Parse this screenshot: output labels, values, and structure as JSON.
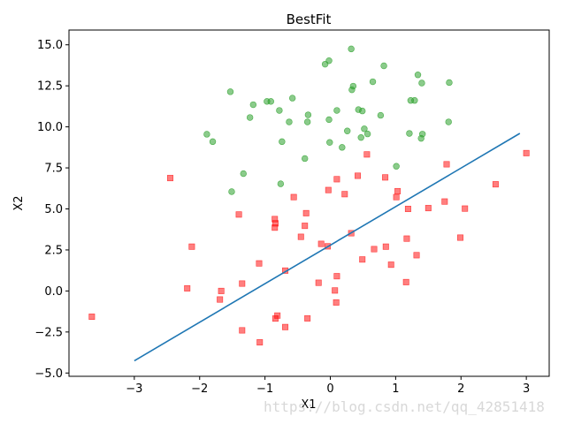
{
  "chart_data": {
    "type": "scatter",
    "title": "BestFit",
    "xlabel": "X1",
    "ylabel": "X2",
    "xlim": [
      -4.0,
      3.35
    ],
    "ylim": [
      -5.2,
      15.9
    ],
    "xticks": [
      -3,
      -2,
      -1,
      0,
      1,
      2,
      3
    ],
    "yticks": [
      -5.0,
      -2.5,
      0.0,
      2.5,
      5.0,
      7.5,
      10.0,
      12.5,
      15.0
    ],
    "xtick_labels": [
      "−3",
      "−2",
      "−1",
      "0",
      "1",
      "2",
      "3"
    ],
    "ytick_labels": [
      "−5.0",
      "−2.5",
      "0.0",
      "2.5",
      "5.0",
      "7.5",
      "10.0",
      "12.5",
      "15.0"
    ],
    "grid": false,
    "series": [
      {
        "kind": "scatter",
        "marker": "circle",
        "color": "#2ca02c",
        "points": [
          [
            0.32,
            14.75
          ],
          [
            -0.08,
            13.82
          ],
          [
            -0.02,
            14.03
          ],
          [
            0.82,
            13.72
          ],
          [
            1.34,
            13.17
          ],
          [
            1.4,
            12.67
          ],
          [
            1.82,
            12.7
          ],
          [
            0.65,
            12.75
          ],
          [
            0.35,
            12.48
          ],
          [
            0.33,
            12.26
          ],
          [
            -1.53,
            12.14
          ],
          [
            -0.58,
            11.75
          ],
          [
            -0.97,
            11.55
          ],
          [
            -0.91,
            11.55
          ],
          [
            -1.18,
            11.35
          ],
          [
            1.23,
            11.61
          ],
          [
            1.29,
            11.61
          ],
          [
            -0.78,
            11.0
          ],
          [
            0.1,
            11.0
          ],
          [
            0.43,
            11.05
          ],
          [
            0.49,
            10.97
          ],
          [
            -0.34,
            10.73
          ],
          [
            0.77,
            10.7
          ],
          [
            -1.23,
            10.57
          ],
          [
            -0.63,
            10.3
          ],
          [
            -0.35,
            10.3
          ],
          [
            -0.02,
            10.44
          ],
          [
            1.81,
            10.3
          ],
          [
            0.52,
            9.88
          ],
          [
            0.57,
            9.57
          ],
          [
            0.26,
            9.75
          ],
          [
            0.47,
            9.35
          ],
          [
            1.21,
            9.6
          ],
          [
            1.41,
            9.56
          ],
          [
            1.39,
            9.3
          ],
          [
            -1.89,
            9.55
          ],
          [
            -1.8,
            9.1
          ],
          [
            -0.74,
            9.1
          ],
          [
            -0.01,
            9.05
          ],
          [
            0.18,
            8.75
          ],
          [
            -0.39,
            8.07
          ],
          [
            1.01,
            7.6
          ],
          [
            -1.33,
            7.15
          ],
          [
            -0.76,
            6.53
          ],
          [
            -1.51,
            6.05
          ]
        ]
      },
      {
        "kind": "scatter",
        "marker": "square",
        "color": "#ff0000",
        "points": [
          [
            3.0,
            8.4
          ],
          [
            0.56,
            8.32
          ],
          [
            1.78,
            7.72
          ],
          [
            0.42,
            7.02
          ],
          [
            -2.45,
            6.88
          ],
          [
            0.1,
            6.81
          ],
          [
            0.84,
            6.92
          ],
          [
            2.53,
            6.5
          ],
          [
            -0.03,
            6.15
          ],
          [
            1.03,
            6.08
          ],
          [
            0.22,
            5.9
          ],
          [
            -0.56,
            5.72
          ],
          [
            1.01,
            5.72
          ],
          [
            1.75,
            5.45
          ],
          [
            1.19,
            5.0
          ],
          [
            1.5,
            5.05
          ],
          [
            2.06,
            5.02
          ],
          [
            -0.37,
            4.74
          ],
          [
            -1.4,
            4.66
          ],
          [
            -0.85,
            4.38
          ],
          [
            -0.84,
            4.12
          ],
          [
            -0.85,
            3.86
          ],
          [
            -0.39,
            3.97
          ],
          [
            0.32,
            3.52
          ],
          [
            -0.45,
            3.3
          ],
          [
            1.99,
            3.25
          ],
          [
            1.17,
            3.19
          ],
          [
            -2.12,
            2.7
          ],
          [
            -0.14,
            2.87
          ],
          [
            -0.04,
            2.72
          ],
          [
            0.85,
            2.7
          ],
          [
            0.67,
            2.55
          ],
          [
            1.32,
            2.18
          ],
          [
            0.49,
            1.92
          ],
          [
            -1.09,
            1.68
          ],
          [
            0.93,
            1.6
          ],
          [
            -0.69,
            1.24
          ],
          [
            0.1,
            0.9
          ],
          [
            -1.35,
            0.45
          ],
          [
            -0.18,
            0.5
          ],
          [
            1.16,
            0.54
          ],
          [
            -2.19,
            0.16
          ],
          [
            -1.67,
            0.0
          ],
          [
            0.07,
            0.03
          ],
          [
            -1.69,
            -0.52
          ],
          [
            0.09,
            -0.7
          ],
          [
            -0.81,
            -1.5
          ],
          [
            -0.84,
            -1.68
          ],
          [
            -3.65,
            -1.57
          ],
          [
            -0.35,
            -1.67
          ],
          [
            -0.69,
            -2.2
          ],
          [
            -1.35,
            -2.4
          ],
          [
            -1.08,
            -3.13
          ]
        ]
      },
      {
        "kind": "line",
        "color": "#1f77b4",
        "points": [
          [
            -3.0,
            -4.25
          ],
          [
            2.9,
            9.6
          ]
        ]
      }
    ],
    "watermark": "https://blog.csdn.net/qq_42851418"
  }
}
